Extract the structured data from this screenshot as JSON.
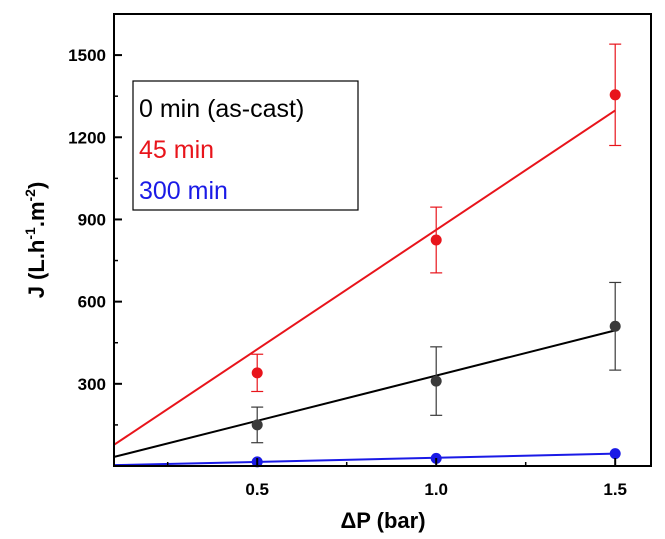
{
  "chart_data": {
    "type": "scatter",
    "xlabel": "ΔP (bar)",
    "ylabel": "J (L.h-1.m-2)",
    "ylabel_parts": {
      "base": "J (L.h",
      "sup1": "-1",
      "mid": ".m",
      "sup2": "-2",
      "end": ")"
    },
    "xlim": [
      0.1,
      1.6
    ],
    "ylim": [
      0,
      1650
    ],
    "xticks": [
      0.5,
      1.0,
      1.5
    ],
    "xtick_labels": [
      "0.5",
      "1.0",
      "1.5"
    ],
    "yticks": [
      300,
      600,
      900,
      1200,
      1500
    ],
    "ytick_labels": [
      "300",
      "600",
      "900",
      "1200",
      "1500"
    ],
    "grid": false,
    "legend_position": "top-left",
    "series": [
      {
        "name": "0 min (as-cast)",
        "color": "#000000",
        "marker_color": "#3a3a3a",
        "x": [
          0.5,
          1.0,
          1.5
        ],
        "y": [
          150,
          310,
          510
        ],
        "err": [
          65,
          125,
          160
        ],
        "fit": {
          "slope": 330,
          "intercept": 0
        }
      },
      {
        "name": "45 min",
        "color": "#e8141b",
        "marker_color": "#e8141b",
        "x": [
          0.5,
          1.0,
          1.5
        ],
        "y": [
          340,
          825,
          1355
        ],
        "err": [
          68,
          120,
          185
        ],
        "fit": {
          "slope": 872,
          "intercept": -10
        }
      },
      {
        "name": "300 min",
        "color": "#1a1ae6",
        "marker_color": "#1a1ae6",
        "x": [
          0.5,
          1.0,
          1.5
        ],
        "y": [
          15,
          28,
          45
        ],
        "err": [
          0,
          0,
          0
        ],
        "fit": {
          "slope": 30,
          "intercept": 0
        }
      }
    ]
  }
}
